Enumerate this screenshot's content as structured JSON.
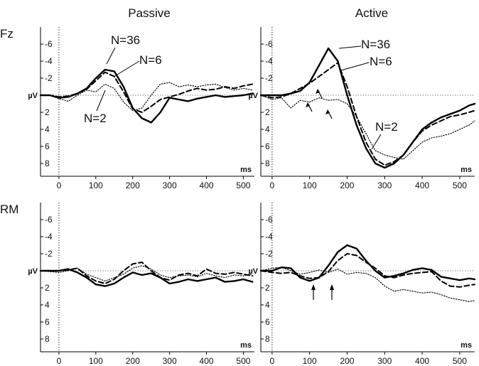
{
  "column_titles": [
    "Passive",
    "Active"
  ],
  "row_labels": [
    "Fz",
    "RM"
  ],
  "y_unit": "µV",
  "x_unit": "ms",
  "x_ticks": [
    "0",
    "100",
    "200",
    "300",
    "400",
    "500"
  ],
  "y_ticks": [
    "-6",
    "-4",
    "-2",
    "2",
    "4",
    "6",
    "8"
  ],
  "annotations": [
    "N=36",
    "N=6",
    "N=2"
  ],
  "line_styles": {
    "N=36": "solid-thick",
    "N=6": "dashed",
    "N=2": "dotted"
  },
  "chart_data": [
    {
      "type": "line",
      "row": "Fz",
      "column": "Passive",
      "xlabel": "ms",
      "ylabel": "µV",
      "xlim": [
        -50,
        530
      ],
      "ylim": [
        9.5,
        -8
      ],
      "y_inverted": true,
      "x": [
        -50,
        -25,
        0,
        25,
        50,
        75,
        100,
        125,
        150,
        175,
        200,
        225,
        250,
        275,
        300,
        325,
        350,
        375,
        400,
        425,
        450,
        475,
        500,
        525
      ],
      "series": [
        {
          "name": "N=36",
          "values": [
            0,
            0,
            0.3,
            0.2,
            -0.2,
            -0.8,
            -2,
            -3,
            -2.8,
            -1,
            1.5,
            2.7,
            3.2,
            2,
            0.3,
            0.5,
            0.7,
            0.4,
            0.2,
            0,
            0.2,
            0.1,
            0,
            -0.2
          ]
        },
        {
          "name": "N=6",
          "values": [
            0,
            0,
            0.2,
            0.1,
            -0.2,
            -0.7,
            -1.7,
            -2.7,
            -2.2,
            -0.4,
            1.6,
            2,
            1.3,
            0.5,
            0.2,
            -0.1,
            -0.5,
            -0.8,
            -0.6,
            -0.7,
            -1,
            -0.8,
            -1.1,
            -1.3
          ]
        },
        {
          "name": "N=2",
          "values": [
            0,
            0,
            0.4,
            0.7,
            0,
            -0.6,
            -0.4,
            -1.3,
            -0.8,
            0.8,
            1.8,
            1.5,
            0,
            -1.3,
            -1.5,
            -1,
            -1.2,
            -1,
            -1.2,
            -1.3,
            -0.9,
            -0.6,
            -0.8,
            -0.6
          ]
        }
      ]
    },
    {
      "type": "line",
      "row": "Fz",
      "column": "Active",
      "xlabel": "ms",
      "ylabel": "µV",
      "xlim": [
        -30,
        540
      ],
      "ylim": [
        9.5,
        -8
      ],
      "y_inverted": true,
      "x": [
        -30,
        0,
        25,
        50,
        75,
        100,
        125,
        150,
        175,
        200,
        225,
        250,
        275,
        300,
        325,
        350,
        375,
        400,
        425,
        450,
        475,
        500,
        525,
        540
      ],
      "series": [
        {
          "name": "N=36",
          "values": [
            0,
            0,
            0,
            -0.2,
            -0.5,
            -1.5,
            -3.5,
            -5.5,
            -4,
            0,
            3.5,
            6.2,
            8,
            8.5,
            8,
            7,
            5.5,
            4,
            3.2,
            2.6,
            2.2,
            1.8,
            1.2,
            1
          ]
        },
        {
          "name": "N=6",
          "values": [
            0,
            0.3,
            0.2,
            -0.2,
            -0.8,
            -1.4,
            -2.2,
            -3,
            -3.8,
            -1,
            2.5,
            5.5,
            7.5,
            8.2,
            7.8,
            7,
            5.5,
            4.2,
            3.5,
            3,
            2.5,
            2.3,
            2,
            1.8
          ]
        },
        {
          "name": "N=2",
          "values": [
            0,
            0.5,
            0.3,
            1.5,
            0.6,
            0.8,
            0.3,
            0.6,
            0.5,
            1,
            2.5,
            4.5,
            6.5,
            7,
            7.3,
            7.5,
            6.5,
            5.5,
            5,
            4.8,
            4.5,
            4,
            3.5,
            3
          ]
        }
      ]
    },
    {
      "type": "line",
      "row": "RM",
      "column": "Passive",
      "xlabel": "ms",
      "ylabel": "µV",
      "xlim": [
        -50,
        530
      ],
      "ylim": [
        9.5,
        -8
      ],
      "y_inverted": true,
      "x": [
        -50,
        -25,
        0,
        25,
        50,
        75,
        100,
        125,
        150,
        175,
        200,
        225,
        250,
        275,
        300,
        325,
        350,
        375,
        400,
        425,
        450,
        475,
        500,
        525
      ],
      "series": [
        {
          "name": "N=36",
          "values": [
            0,
            0,
            0,
            -0.2,
            0.2,
            0.8,
            1.6,
            1.8,
            1.5,
            0.8,
            0.2,
            0.5,
            0.3,
            0.8,
            1.5,
            1.3,
            1,
            1.2,
            1,
            0.8,
            1.3,
            1.2,
            1,
            1.3
          ]
        },
        {
          "name": "N=6",
          "values": [
            0,
            0,
            0,
            -0.1,
            -0.3,
            0.6,
            1.2,
            1.5,
            1,
            0,
            -0.8,
            -1,
            0,
            0.8,
            1.1,
            0.5,
            0.3,
            0.6,
            -0.2,
            0.3,
            0.4,
            0.2,
            0.4,
            0.6
          ]
        },
        {
          "name": "N=2",
          "values": [
            0,
            0.1,
            0.2,
            0,
            -0.3,
            0.4,
            0.8,
            1.2,
            0.8,
            0.4,
            -0.3,
            -0.6,
            -0.2,
            0.5,
            0.8,
            0.6,
            0.5,
            0.7,
            0.3,
            0.6,
            0.8,
            0.5,
            0.6,
            0.4
          ]
        }
      ]
    },
    {
      "type": "line",
      "row": "RM",
      "column": "Active",
      "xlabel": "ms",
      "ylabel": "µV",
      "xlim": [
        -30,
        540
      ],
      "ylim": [
        9.5,
        -8
      ],
      "y_inverted": true,
      "x": [
        -30,
        0,
        25,
        50,
        75,
        100,
        125,
        150,
        175,
        200,
        225,
        250,
        275,
        300,
        325,
        350,
        375,
        400,
        425,
        450,
        475,
        500,
        525,
        540
      ],
      "series": [
        {
          "name": "N=36",
          "values": [
            0,
            0,
            -0.4,
            -0.3,
            0.8,
            1.2,
            0.8,
            -0.6,
            -2.2,
            -3,
            -2.6,
            -1.2,
            0,
            0.8,
            0.6,
            0.3,
            -0.1,
            -0.3,
            -0.1,
            0.7,
            0.9,
            1.1,
            0.9,
            1
          ]
        },
        {
          "name": "N=6",
          "values": [
            0,
            0.2,
            0.3,
            0.2,
            0.6,
            0.9,
            0.8,
            0.1,
            -1.2,
            -2,
            -1.8,
            -1,
            -0.3,
            0.6,
            0.8,
            0.5,
            0.3,
            0.2,
            0.1,
            1.2,
            1.8,
            1.9,
            1.7,
            1.6
          ]
        },
        {
          "name": "N=2",
          "values": [
            0,
            -0.3,
            -0.4,
            0,
            0.4,
            0.2,
            -0.1,
            0.2,
            -0.2,
            0.4,
            0.2,
            0.3,
            0.8,
            1.8,
            2.4,
            2.2,
            2.4,
            2.6,
            2.5,
            2.8,
            3.2,
            3.4,
            3.6,
            3.5
          ]
        }
      ]
    }
  ]
}
